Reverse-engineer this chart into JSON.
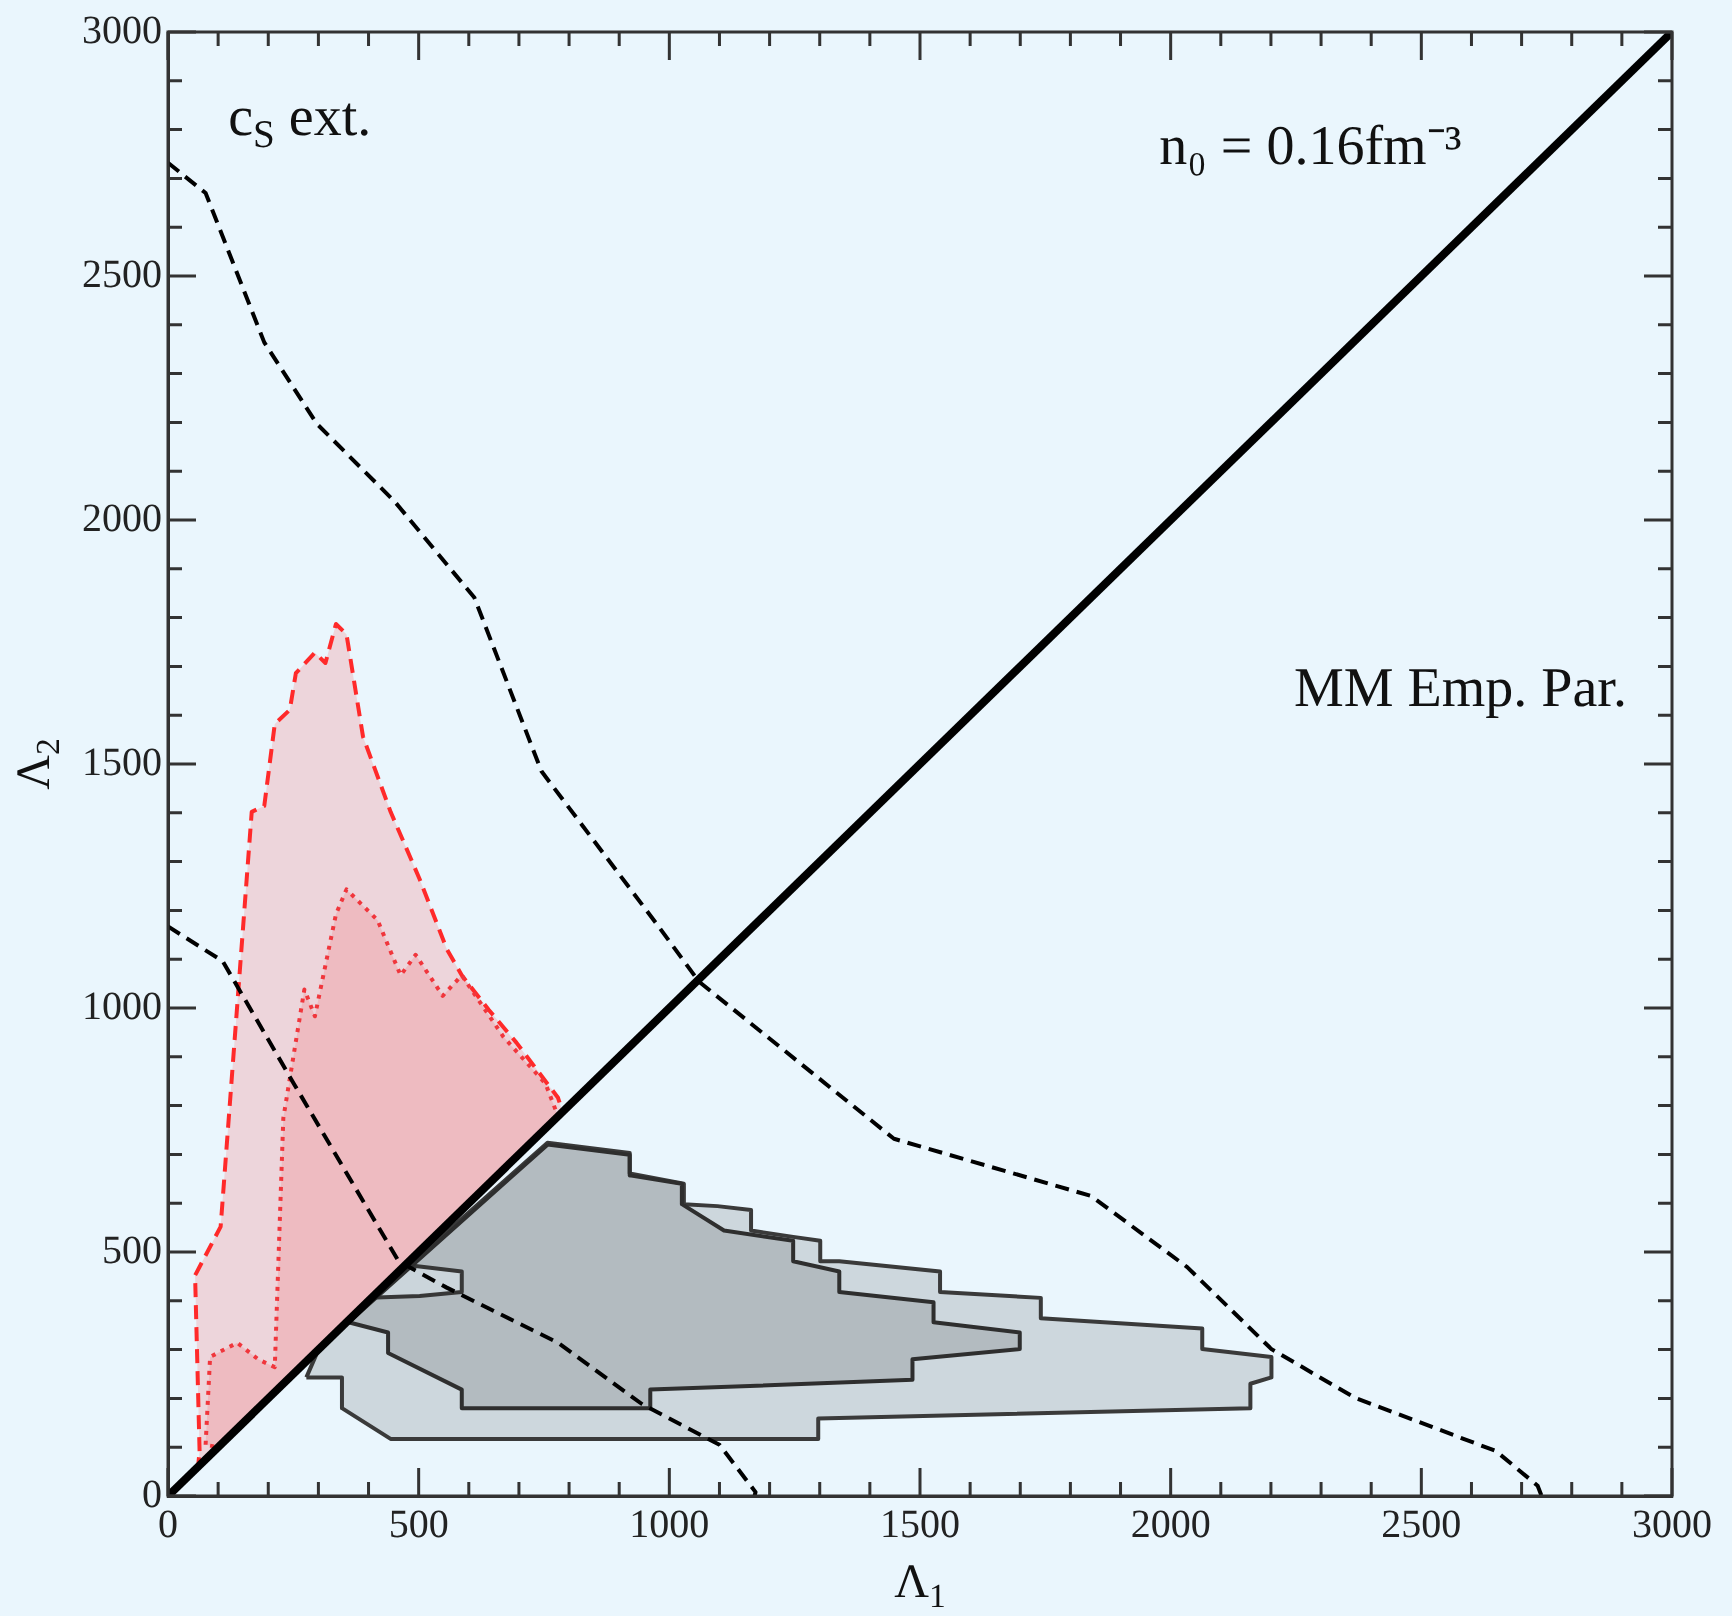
{
  "chart_data": {
    "type": "line",
    "xlabel": "Λ$_{1}$",
    "ylabel": "Λ$_{2}$",
    "xlim": [
      0,
      3000
    ],
    "ylim": [
      0,
      3000
    ],
    "xticks": [
      0,
      {
        "value": 100,
        "label": null
      },
      {
        "value": 200,
        "label": null
      },
      {
        "value": 300,
        "label": null
      },
      {
        "value": 400,
        "label": null
      },
      500,
      {
        "value": 600,
        "label": null
      },
      {
        "value": 700,
        "label": null
      },
      {
        "value": 800,
        "label": null
      },
      {
        "value": 900,
        "label": null
      },
      1000,
      {
        "value": 1100,
        "label": null
      },
      {
        "value": 1200,
        "label": null
      },
      {
        "value": 1300,
        "label": null
      },
      {
        "value": 1400,
        "label": null
      },
      1500,
      {
        "value": 1600,
        "label": null
      },
      {
        "value": 1700,
        "label": null
      },
      {
        "value": 1800,
        "label": null
      },
      {
        "value": 1900,
        "label": null
      },
      2000,
      {
        "value": 2100,
        "label": null
      },
      {
        "value": 2200,
        "label": null
      },
      {
        "value": 2300,
        "label": null
      },
      {
        "value": 2400,
        "label": null
      },
      2500,
      {
        "value": 2600,
        "label": null
      },
      {
        "value": 2700,
        "label": null
      },
      {
        "value": 2800,
        "label": null
      },
      {
        "value": 2900,
        "label": null
      },
      3000
    ],
    "yticks": [
      0,
      {
        "value": 100,
        "label": null
      },
      {
        "value": 200,
        "label": null
      },
      {
        "value": 300,
        "label": null
      },
      {
        "value": 400,
        "label": null
      },
      500,
      {
        "value": 600,
        "label": null
      },
      {
        "value": 700,
        "label": null
      },
      {
        "value": 800,
        "label": null
      },
      {
        "value": 900,
        "label": null
      },
      1000,
      {
        "value": 1100,
        "label": null
      },
      {
        "value": 1200,
        "label": null
      },
      {
        "value": 1300,
        "label": null
      },
      {
        "value": 1400,
        "label": null
      },
      1500,
      {
        "value": 1600,
        "label": null
      },
      {
        "value": 1700,
        "label": null
      },
      {
        "value": 1800,
        "label": null
      },
      {
        "value": 1900,
        "label": null
      },
      2000,
      {
        "value": 2100,
        "label": null
      },
      {
        "value": 2200,
        "label": null
      },
      {
        "value": 2300,
        "label": null
      },
      {
        "value": 2400,
        "label": null
      },
      2500,
      {
        "value": 2600,
        "label": null
      },
      {
        "value": 2700,
        "label": null
      },
      {
        "value": 2800,
        "label": null
      },
      {
        "value": 2900,
        "label": null
      },
      3000
    ],
    "grid": false,
    "legend": false,
    "marker": "none",
    "annotations": [
      "c$_{S}$ ext.",
      "n₀ = 0.16fm⁻³",
      "MM Emp. Par."
    ],
    "series": [
      {
        "type": "area",
        "color": "#3a3a3a",
        "line_style": "solid",
        "x": [
          276,
          347,
          347,
          444,
          1297,
          1297,
          2159,
          2159,
          2201,
          2201,
          2063,
          2063,
          1741,
          1741,
          1540,
          1540,
          1339,
          1301,
          1301,
          1247,
          1163,
          1163,
          1096,
          1029,
          1029,
          921,
          921,
          757,
          481,
          586,
          586,
          502,
          402,
          300
        ],
        "values": [
          243,
          243,
          180,
          117,
          117,
          159,
          180,
          230,
          243,
          285,
          301,
          343,
          364,
          406,
          418,
          460,
          481,
          481,
          523,
          531,
          544,
          586,
          594,
          598,
          640,
          661,
          703,
          724,
          473,
          460,
          418,
          410,
          406,
          300
        ]
      },
      {
        "type": "area",
        "color": "#2e2e2e",
        "line_style": "solid",
        "x": [
          757,
          921,
          921,
          1025,
          1025,
          1109,
          1247,
          1247,
          1339,
          1339,
          1527,
          1527,
          1699,
          1699,
          1485,
          1485,
          962,
          962,
          586,
          586,
          439,
          439,
          360
        ],
        "values": [
          720,
          699,
          657,
          640,
          598,
          544,
          523,
          481,
          460,
          418,
          397,
          356,
          335,
          301,
          280,
          238,
          218,
          180,
          180,
          218,
          293,
          335,
          356
        ]
      },
      {
        "type": "area",
        "color": "#ff2a2a",
        "line_style": "dashed",
        "x": [
          63,
          54,
          105,
          167,
          192,
          213,
          243,
          255,
          293,
          314,
          335,
          356,
          389,
          444,
          502,
          556,
          586,
          640,
          695,
          778,
          787,
          60
        ],
        "values": [
          92,
          452,
          552,
          1402,
          1414,
          1582,
          1611,
          1686,
          1728,
          1707,
          1787,
          1766,
          1556,
          1402,
          1264,
          1121,
          1067,
          996,
          929,
          816,
          787,
          60
        ]
      },
      {
        "type": "area",
        "color": "#f0363c",
        "line_style": "dotted",
        "x": [
          75,
          84,
          138,
          180,
          213,
          230,
          272,
          293,
          335,
          356,
          418,
          464,
          494,
          548,
          586,
          669,
          753,
          778,
          100
        ],
        "values": [
          105,
          285,
          314,
          280,
          264,
          774,
          1038,
          983,
          1192,
          1243,
          1180,
          1067,
          1109,
          1025,
          1067,
          941,
          845,
          778,
          100
        ]
      },
      {
        "type": "line",
        "color": "#000000",
        "line_style": "dashed",
        "x": [
          0,
          75,
          192,
          297,
          452,
          611,
          745,
          975,
          1059,
          1448,
          1841,
          2033,
          2201,
          2368,
          2649,
          2732,
          2740
        ],
        "values": [
          2732,
          2670,
          2364,
          2197,
          2038,
          1841,
          1485,
          1172,
          1054,
          732,
          615,
          469,
          301,
          201,
          92,
          21,
          0
        ]
      },
      {
        "type": "line",
        "color": "#000000",
        "line_style": "dashed",
        "x": [
          0,
          109,
          251,
          460,
          556,
          778,
          946,
          1100,
          1172,
          1170
        ],
        "values": [
          1167,
          1096,
          845,
          481,
          427,
          314,
          188,
          105,
          8,
          0
        ]
      },
      {
        "type": "line",
        "color": "#000000",
        "line_style": "solid",
        "x": [
          0,
          3000
        ],
        "values": [
          0,
          3000
        ]
      }
    ]
  }
}
